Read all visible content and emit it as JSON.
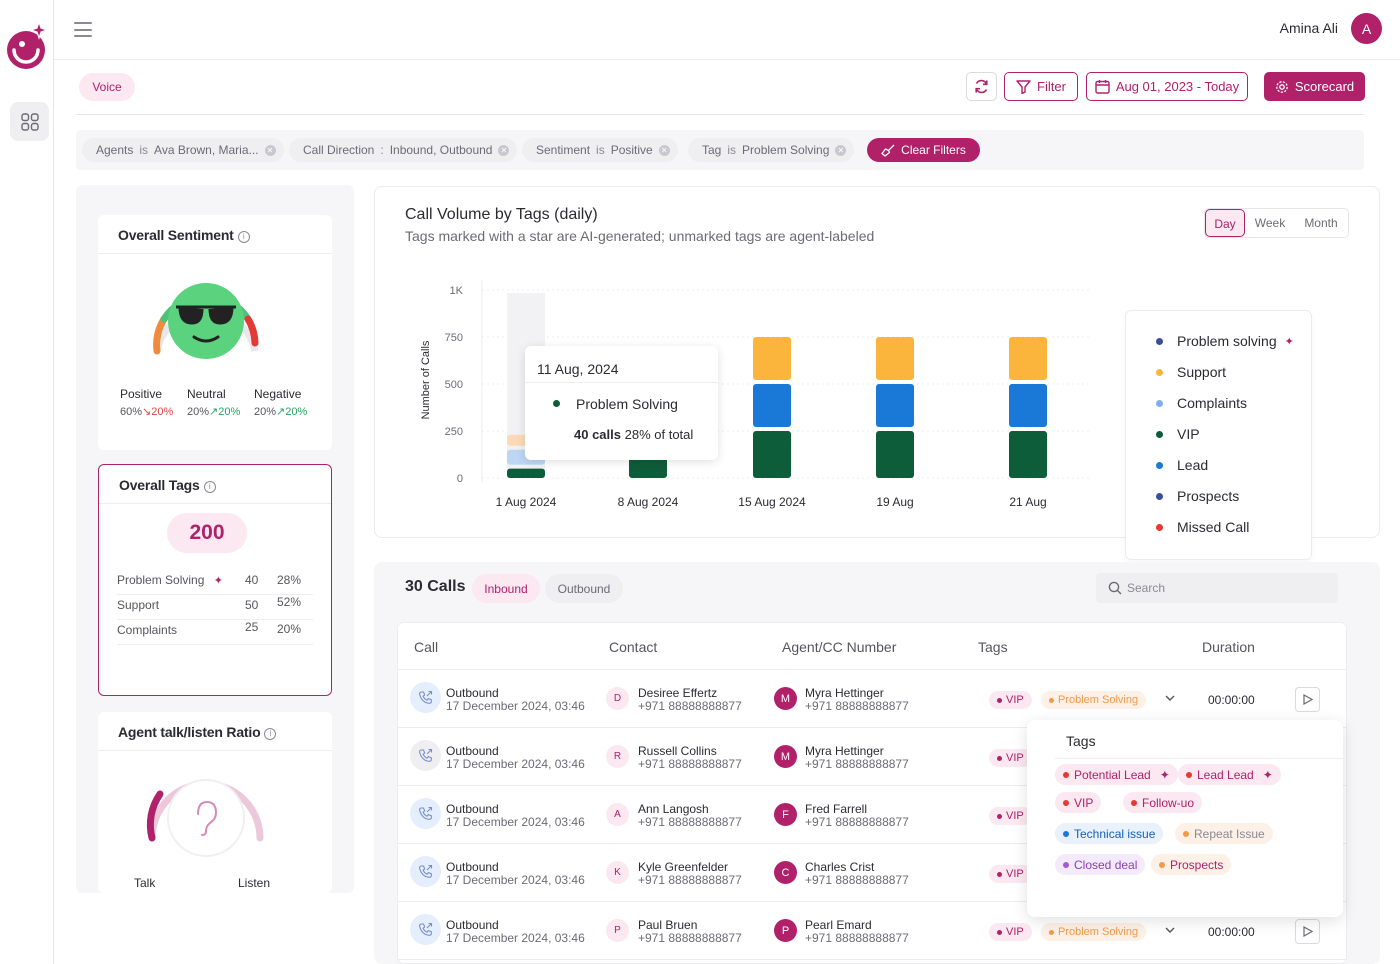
{
  "user": {
    "name": "Amina Ali",
    "initial": "A"
  },
  "header": {
    "voice_label": "Voice",
    "filter_label": "Filter",
    "date_range": "Aug 01, 2023 - Today",
    "scorecard_label": "Scorecard"
  },
  "filters": [
    {
      "field": "Agents",
      "op": "is",
      "value": "Ava Brown, Maria..."
    },
    {
      "field": "Call Direction",
      "op": ":",
      "value": "Inbound, Outbound"
    },
    {
      "field": "Sentiment",
      "op": "is",
      "value": "Positive"
    },
    {
      "field": "Tag",
      "op": "is",
      "value": "Problem Solving"
    }
  ],
  "clear_filters_label": "Clear Filters",
  "sentiment": {
    "title": "Overall Sentiment",
    "items": [
      {
        "label": "Positive",
        "value": "60%",
        "delta": "20%",
        "trend": "down"
      },
      {
        "label": "Neutral",
        "value": "20%",
        "delta": "20%",
        "trend": "up"
      },
      {
        "label": "Negative",
        "value": "20%",
        "delta": "20%",
        "trend": "up"
      }
    ]
  },
  "tags_overview": {
    "title": "Overall Tags",
    "total": "200",
    "rows": [
      {
        "label": "Problem Solving",
        "ai": true,
        "count": "40",
        "pct": "28%"
      },
      {
        "label": "Support",
        "ai": false,
        "count": "50",
        "pct": "52%"
      },
      {
        "label": "Complaints",
        "ai": false,
        "count": "25",
        "pct": "20%"
      }
    ]
  },
  "talk_ratio": {
    "title": "Agent talk/listen Ratio",
    "talk_label": "Talk",
    "listen_label": "Listen"
  },
  "chart_header": {
    "title": "Call Volume by Tags (daily)",
    "subtitle": "Tags marked with a star are AI-generated; unmarked tags are agent-labeled",
    "periods": [
      "Day",
      "Week",
      "Month"
    ],
    "active_period": "Day"
  },
  "chart_data": {
    "type": "bar",
    "stacked": true,
    "ylabel": "Number of Calls",
    "ylim": [
      0,
      1000
    ],
    "yticks": [
      0,
      250,
      500,
      750,
      1000
    ],
    "ytick_labels": [
      "0",
      "250",
      "500",
      "750",
      "1K"
    ],
    "categories": [
      "1 Aug 2024",
      "8 Aug 2024",
      "15 Aug 2024",
      "19 Aug",
      "21 Aug"
    ],
    "series": [
      {
        "name": "VIP",
        "color": "#0d5c3a",
        "values": [
          50,
          120,
          250,
          250,
          250
        ]
      },
      {
        "name": "Lead",
        "color": "#1a78d6",
        "values": [
          100,
          0,
          250,
          250,
          250
        ]
      },
      {
        "name": "Support",
        "color": "#fbb43c",
        "values": [
          80,
          0,
          250,
          250,
          250
        ]
      }
    ],
    "highlight_index": 0,
    "tooltip": {
      "date": "11 Aug, 2024",
      "tag": "Problem Solving",
      "calls": "40 calls",
      "share": "28% of total"
    },
    "legend": [
      {
        "name": "Problem solving",
        "color": "#3a4e9a",
        "ai": true
      },
      {
        "name": "Support",
        "color": "#fbb43c",
        "ai": false
      },
      {
        "name": "Complaints",
        "color": "#7eaef0",
        "ai": false
      },
      {
        "name": "VIP",
        "color": "#0d5c3a",
        "ai": false
      },
      {
        "name": "Lead",
        "color": "#1a78d6",
        "ai": false
      },
      {
        "name": "Prospects",
        "color": "#3a4e9a",
        "ai": false
      },
      {
        "name": "Missed Call",
        "color": "#e53935",
        "ai": false
      }
    ]
  },
  "calls": {
    "title": "30 Calls",
    "tabs": [
      "Inbound",
      "Outbound"
    ],
    "search_placeholder": "Search",
    "columns": [
      "Call",
      "Contact",
      "Agent/CC Number",
      "Tags",
      "Duration"
    ],
    "rows": [
      {
        "direction": "Outbound",
        "datetime": "17 December 2024, 03:46",
        "contact_initial": "D",
        "contact": "Desiree Effertz",
        "contact_phone": "+971 88888888877",
        "agent_initial": "M",
        "agent": "Myra Hettinger",
        "agent_phone": "+971 88888888877",
        "tag1": "VIP",
        "tag2": "Problem Solving",
        "duration": "00:00:00"
      },
      {
        "direction": "Outbound",
        "datetime": "17 December 2024, 03:46",
        "contact_initial": "R",
        "contact": "Russell Collins",
        "contact_phone": "+971 88888888877",
        "agent_initial": "M",
        "agent": "Myra Hettinger",
        "agent_phone": "+971 88888888877",
        "tag1": "VIP",
        "tag2": "",
        "duration": ""
      },
      {
        "direction": "Outbound",
        "datetime": "17 December 2024, 03:46",
        "contact_initial": "A",
        "contact": "Ann Langosh",
        "contact_phone": "+971 88888888877",
        "agent_initial": "F",
        "agent": "Fred Farrell",
        "agent_phone": "+971 88888888877",
        "tag1": "VIP",
        "tag2": "",
        "duration": ""
      },
      {
        "direction": "Outbound",
        "datetime": "17 December 2024, 03:46",
        "contact_initial": "K",
        "contact": "Kyle Greenfelder",
        "contact_phone": "+971 88888888877",
        "agent_initial": "C",
        "agent": "Charles Crist",
        "agent_phone": "+971 88888888877",
        "tag1": "VIP",
        "tag2": "",
        "duration": ""
      },
      {
        "direction": "Outbound",
        "datetime": "17 December 2024, 03:46",
        "contact_initial": "P",
        "contact": "Paul Bruen",
        "contact_phone": "+971 88888888877",
        "agent_initial": "P",
        "agent": "Pearl Emard",
        "agent_phone": "+971 88888888877",
        "tag1": "VIP",
        "tag2": "Problem Solving",
        "duration": "00:00:00"
      }
    ]
  },
  "tags_popover": {
    "title": "Tags",
    "tags": [
      {
        "label": "Potential Lead",
        "color": "#e53935",
        "bg": "#fbe8f0",
        "text": "#b0216a",
        "ai": true
      },
      {
        "label": "Lead Lead",
        "color": "#e53935",
        "bg": "#fbe8f0",
        "text": "#b0216a",
        "ai": true
      },
      {
        "label": "VIP",
        "color": "#e53935",
        "bg": "#fbe8f0",
        "text": "#b0216a",
        "ai": false
      },
      {
        "label": "Follow-uo",
        "color": "#e53935",
        "bg": "#fbe8f0",
        "text": "#b0216a",
        "ai": false
      },
      {
        "label": "Technical issue",
        "color": "#1a78d6",
        "bg": "#e8f1fc",
        "text": "#1a5fb0",
        "ai": false
      },
      {
        "label": "Repeat Issue",
        "color": "#f29a4a",
        "bg": "#fdf0e6",
        "text": "#8a8a93",
        "ai": false
      },
      {
        "label": "Closed deal",
        "color": "#a35ad6",
        "bg": "#f3eafb",
        "text": "#8a3fbf",
        "ai": false
      },
      {
        "label": "Prospects",
        "color": "#f29a4a",
        "bg": "#fdf0e6",
        "text": "#b0216a",
        "ai": false
      }
    ]
  }
}
